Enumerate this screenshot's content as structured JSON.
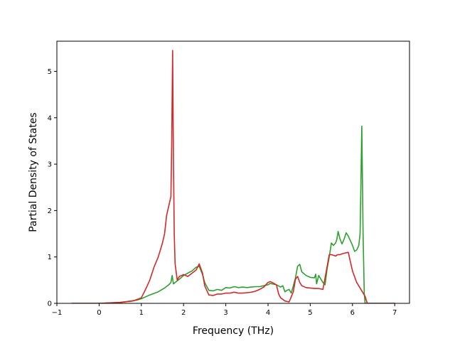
{
  "chart_data": {
    "type": "line",
    "title": "",
    "xlabel": "Frequency (THz)",
    "ylabel": "Partial Density of States",
    "xlim": [
      -1.0,
      7.35
    ],
    "ylim": [
      0,
      5.65
    ],
    "xticks": [
      -1,
      0,
      1,
      2,
      3,
      4,
      5,
      6,
      7
    ],
    "yticks": [
      0,
      1,
      2,
      3,
      4,
      5
    ],
    "grid": false,
    "legend": "none",
    "series": [
      {
        "color": "#2ca02c",
        "x": [
          -0.65,
          0.0,
          0.5,
          0.9,
          1.0,
          1.2,
          1.4,
          1.55,
          1.65,
          1.7,
          1.73,
          1.76,
          1.8,
          1.9,
          2.0,
          2.1,
          2.2,
          2.3,
          2.37,
          2.45,
          2.5,
          2.6,
          2.7,
          2.8,
          2.9,
          3.0,
          3.1,
          3.2,
          3.3,
          3.4,
          3.5,
          3.6,
          3.7,
          3.8,
          3.9,
          4.0,
          4.05,
          4.1,
          4.2,
          4.3,
          4.35,
          4.4,
          4.45,
          4.5,
          4.55,
          4.6,
          4.65,
          4.7,
          4.75,
          4.8,
          4.9,
          5.0,
          5.1,
          5.13,
          5.15,
          5.2,
          5.3,
          5.35,
          5.4,
          5.45,
          5.5,
          5.55,
          5.6,
          5.63,
          5.66,
          5.7,
          5.75,
          5.8,
          5.85,
          5.9,
          5.95,
          6.0,
          6.05,
          6.1,
          6.15,
          6.18,
          6.2,
          6.22,
          6.25,
          6.28,
          6.3,
          7.0
        ],
        "values": [
          0.0,
          0.0,
          0.02,
          0.07,
          0.1,
          0.18,
          0.25,
          0.33,
          0.4,
          0.45,
          0.6,
          0.42,
          0.45,
          0.52,
          0.6,
          0.65,
          0.7,
          0.78,
          0.8,
          0.62,
          0.45,
          0.28,
          0.27,
          0.3,
          0.28,
          0.34,
          0.33,
          0.36,
          0.34,
          0.35,
          0.34,
          0.35,
          0.36,
          0.36,
          0.38,
          0.4,
          0.43,
          0.42,
          0.4,
          0.35,
          0.38,
          0.25,
          0.28,
          0.3,
          0.22,
          0.38,
          0.55,
          0.8,
          0.84,
          0.68,
          0.6,
          0.56,
          0.55,
          0.63,
          0.42,
          0.6,
          0.45,
          0.4,
          0.75,
          1.0,
          1.3,
          1.25,
          1.3,
          1.38,
          1.55,
          1.4,
          1.28,
          1.38,
          1.52,
          1.45,
          1.35,
          1.25,
          1.12,
          1.15,
          1.25,
          1.5,
          2.6,
          3.82,
          1.5,
          0.2,
          0.0,
          0.0
        ]
      },
      {
        "color": "#d62728",
        "x": [
          -0.65,
          0.0,
          0.5,
          0.8,
          1.0,
          1.1,
          1.2,
          1.3,
          1.4,
          1.5,
          1.55,
          1.6,
          1.65,
          1.7,
          1.72,
          1.74,
          1.76,
          1.78,
          1.8,
          1.85,
          1.9,
          2.0,
          2.1,
          2.2,
          2.3,
          2.37,
          2.45,
          2.5,
          2.6,
          2.7,
          2.8,
          2.9,
          3.0,
          3.1,
          3.2,
          3.3,
          3.4,
          3.5,
          3.6,
          3.7,
          3.8,
          3.9,
          4.0,
          4.05,
          4.1,
          4.2,
          4.25,
          4.3,
          4.4,
          4.5,
          4.6,
          4.65,
          4.7,
          4.75,
          4.8,
          4.9,
          5.0,
          5.1,
          5.2,
          5.3,
          5.4,
          5.45,
          5.5,
          5.6,
          5.65,
          5.7,
          5.8,
          5.9,
          5.95,
          6.0,
          6.1,
          6.2,
          6.3,
          6.35,
          7.0
        ],
        "values": [
          0.0,
          0.0,
          0.02,
          0.05,
          0.12,
          0.3,
          0.5,
          0.78,
          1.0,
          1.3,
          1.5,
          1.9,
          2.1,
          2.3,
          3.5,
          5.45,
          3.2,
          1.5,
          0.85,
          0.5,
          0.58,
          0.62,
          0.58,
          0.65,
          0.72,
          0.85,
          0.65,
          0.38,
          0.18,
          0.17,
          0.2,
          0.2,
          0.22,
          0.22,
          0.24,
          0.22,
          0.22,
          0.23,
          0.24,
          0.26,
          0.3,
          0.35,
          0.45,
          0.47,
          0.45,
          0.4,
          0.2,
          0.12,
          0.05,
          0.03,
          0.25,
          0.52,
          0.58,
          0.45,
          0.38,
          0.34,
          0.33,
          0.32,
          0.32,
          0.3,
          0.8,
          1.05,
          1.05,
          1.02,
          1.05,
          1.05,
          1.08,
          1.1,
          0.9,
          0.7,
          0.45,
          0.3,
          0.15,
          0.0,
          0.0
        ]
      }
    ]
  }
}
